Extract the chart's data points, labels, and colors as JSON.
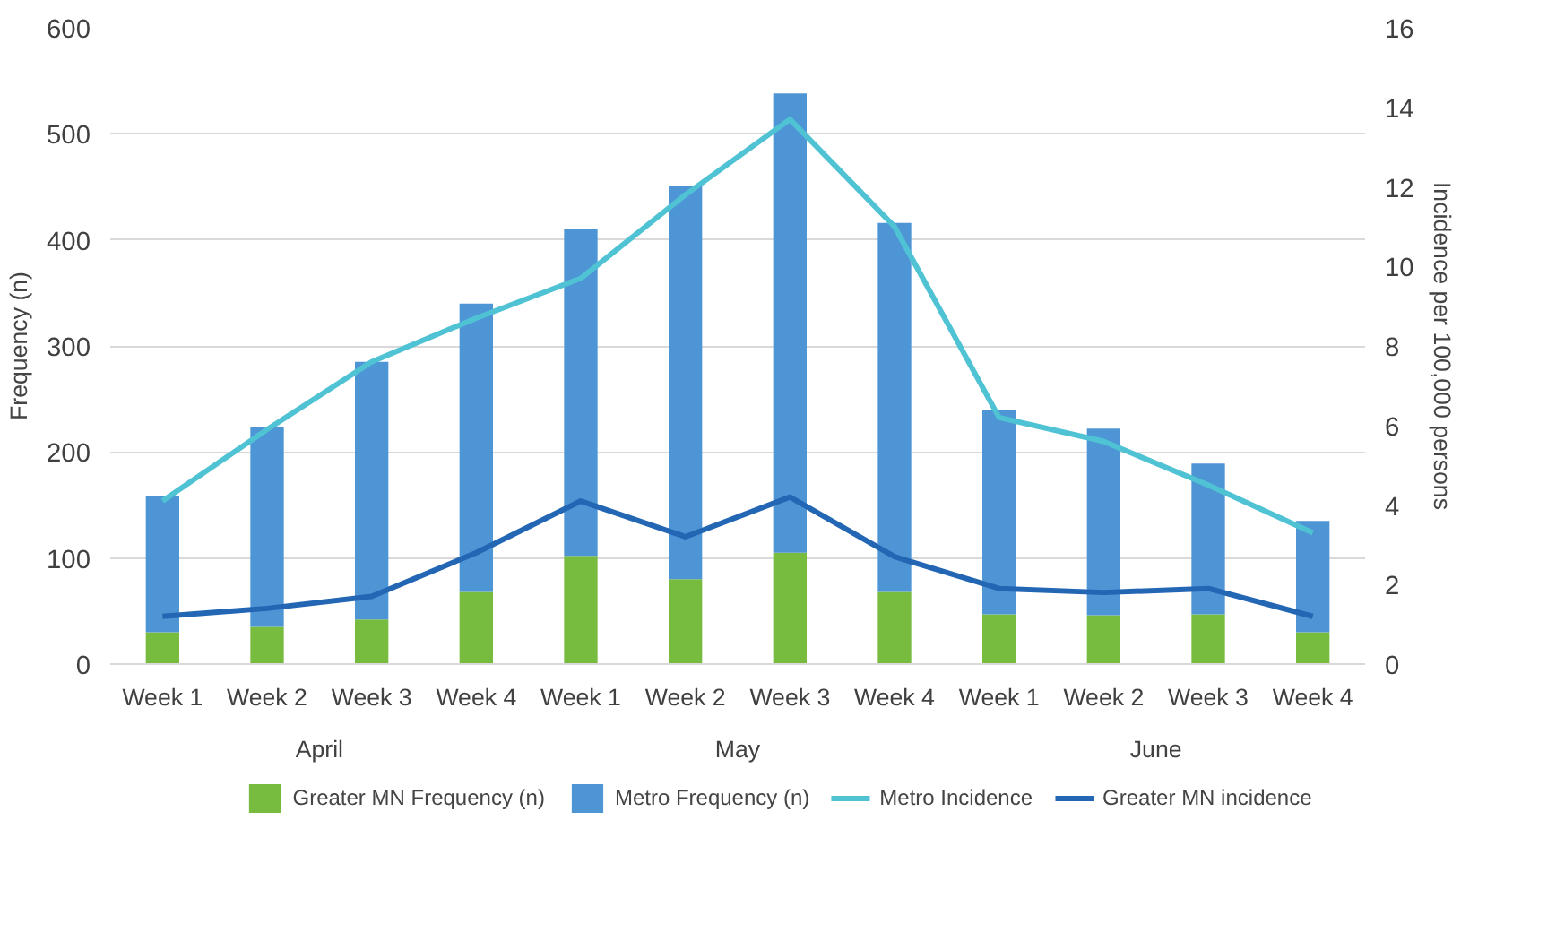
{
  "chart_data": {
    "type": "bar",
    "stacked": true,
    "ylabel": "Frequency (n)",
    "y2label": "Incidence per 100,000 persons",
    "categories": [
      "Week 1",
      "Week 2",
      "Week 3",
      "Week 4",
      "Week 1",
      "Week 2",
      "Week 3",
      "Week 4",
      "Week 1",
      "Week 2",
      "Week 3",
      "Week 4"
    ],
    "annotations": [
      "April",
      "May",
      "June"
    ],
    "series": [
      {
        "name": "Greater MN Frequency (n)",
        "color": "#77bc3f",
        "values": [
          30,
          35,
          42,
          68,
          102,
          80,
          105,
          68,
          47,
          46,
          47,
          30
        ]
      },
      {
        "name": "Metro Frequency (n)",
        "color": "#4e95d6",
        "values": [
          128,
          188,
          243,
          272,
          308,
          371,
          433,
          348,
          193,
          176,
          142,
          105
        ]
      },
      {
        "name": "Metro Incidence",
        "type": "line",
        "axis": "y2",
        "color": "#4fc3d3",
        "values": [
          4.1,
          5.9,
          7.6,
          8.7,
          9.7,
          11.8,
          13.7,
          11.0,
          6.2,
          5.6,
          4.5,
          3.3
        ]
      },
      {
        "name": "Greater MN incidence",
        "type": "line",
        "axis": "y2",
        "color": "#2366b4",
        "values": [
          1.2,
          1.4,
          1.7,
          2.8,
          4.1,
          3.2,
          4.2,
          2.7,
          1.9,
          1.8,
          1.9,
          1.2
        ]
      }
    ],
    "ylim": [
      0,
      600
    ],
    "yticks": [
      0,
      100,
      200,
      300,
      400,
      500,
      600
    ],
    "y2lim": [
      0,
      16
    ],
    "y2ticks": [
      0,
      2,
      4,
      6,
      8,
      10,
      12,
      14,
      16
    ],
    "grid": "y",
    "legend": "bottom",
    "marker": "none",
    "line_style": "solid"
  }
}
